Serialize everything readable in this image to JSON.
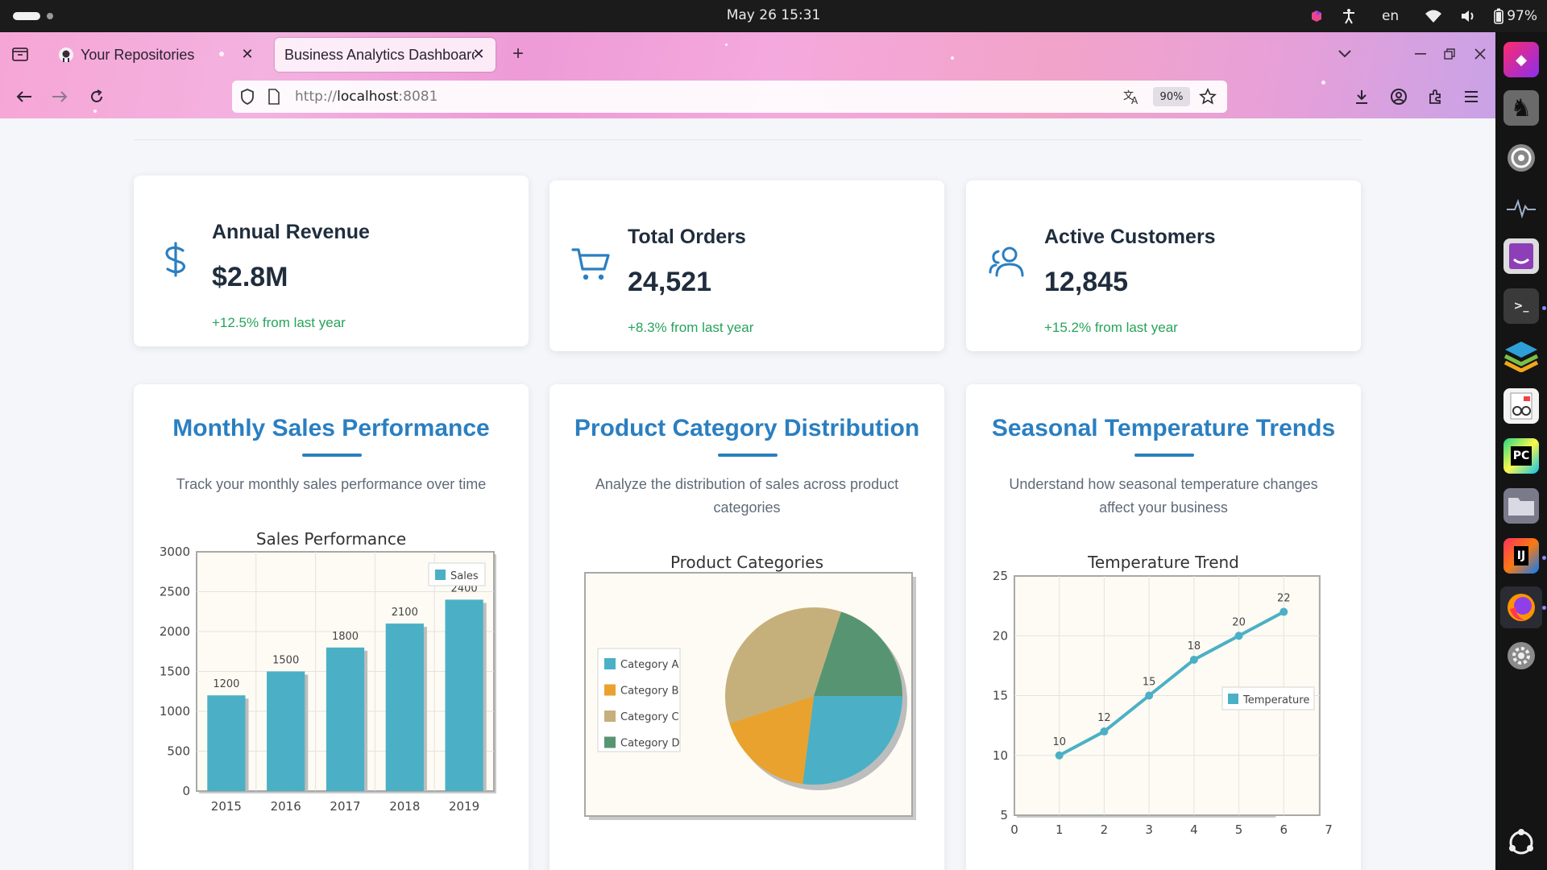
{
  "system": {
    "clock": "May 26  15:31",
    "keyboard": "en",
    "battery": "97%"
  },
  "browser": {
    "tabs": [
      {
        "label": "Your Repositories"
      },
      {
        "label": "Business Analytics Dashboard"
      }
    ],
    "url_scheme": "http://",
    "url_host": "localhost",
    "url_port": ":8081",
    "zoom": "90%"
  },
  "stats": [
    {
      "title": "Annual Revenue",
      "value": "$2.8M",
      "change": "+12.5% from last year",
      "icon": "dollar-icon"
    },
    {
      "title": "Total Orders",
      "value": "24,521",
      "change": "+8.3% from last year",
      "icon": "cart-icon"
    },
    {
      "title": "Active Customers",
      "value": "12,845",
      "change": "+15.2% from last year",
      "icon": "users-icon"
    }
  ],
  "cards": [
    {
      "title": "Monthly Sales Performance",
      "description": "Track your monthly sales performance over time"
    },
    {
      "title": "Product Category Distribution",
      "description": "Analyze the distribution of sales across product categories"
    },
    {
      "title": "Seasonal Temperature Trends",
      "description": "Understand how seasonal temperature changes affect your business"
    }
  ],
  "colors": {
    "accent": "#2a7fc1",
    "positive": "#27a35a",
    "bar": "#4bb0c6",
    "slice_a": "#4bb0c6",
    "slice_b": "#e9a22d",
    "slice_c": "#c5b07b",
    "slice_d": "#579572"
  },
  "chart_data": [
    {
      "type": "bar",
      "title": "Sales Performance",
      "categories": [
        "2015",
        "2016",
        "2017",
        "2018",
        "2019"
      ],
      "series": [
        {
          "name": "Sales",
          "values": [
            1200,
            1500,
            1800,
            2100,
            2400
          ]
        }
      ],
      "ylim": [
        0,
        3000
      ],
      "yticks": [
        0,
        500,
        1000,
        1500,
        2000,
        2500,
        3000
      ],
      "legend": "top-right",
      "grid": true
    },
    {
      "type": "pie",
      "title": "Product Categories",
      "labels": [
        "Category A",
        "Category B",
        "Category C",
        "Category D"
      ],
      "values": [
        27,
        18,
        35,
        20
      ],
      "legend": "left"
    },
    {
      "type": "line",
      "title": "Temperature Trend",
      "x": [
        1,
        2,
        3,
        4,
        5,
        6
      ],
      "series": [
        {
          "name": "Temperature",
          "values": [
            10,
            12,
            15,
            18,
            20,
            22
          ]
        }
      ],
      "xlim": [
        0,
        7
      ],
      "xticks": [
        0,
        1,
        2,
        3,
        4,
        5,
        6,
        7
      ],
      "ylim": [
        5,
        25
      ],
      "yticks": [
        5,
        10,
        15,
        20,
        25
      ],
      "legend": "right",
      "grid": true
    }
  ]
}
